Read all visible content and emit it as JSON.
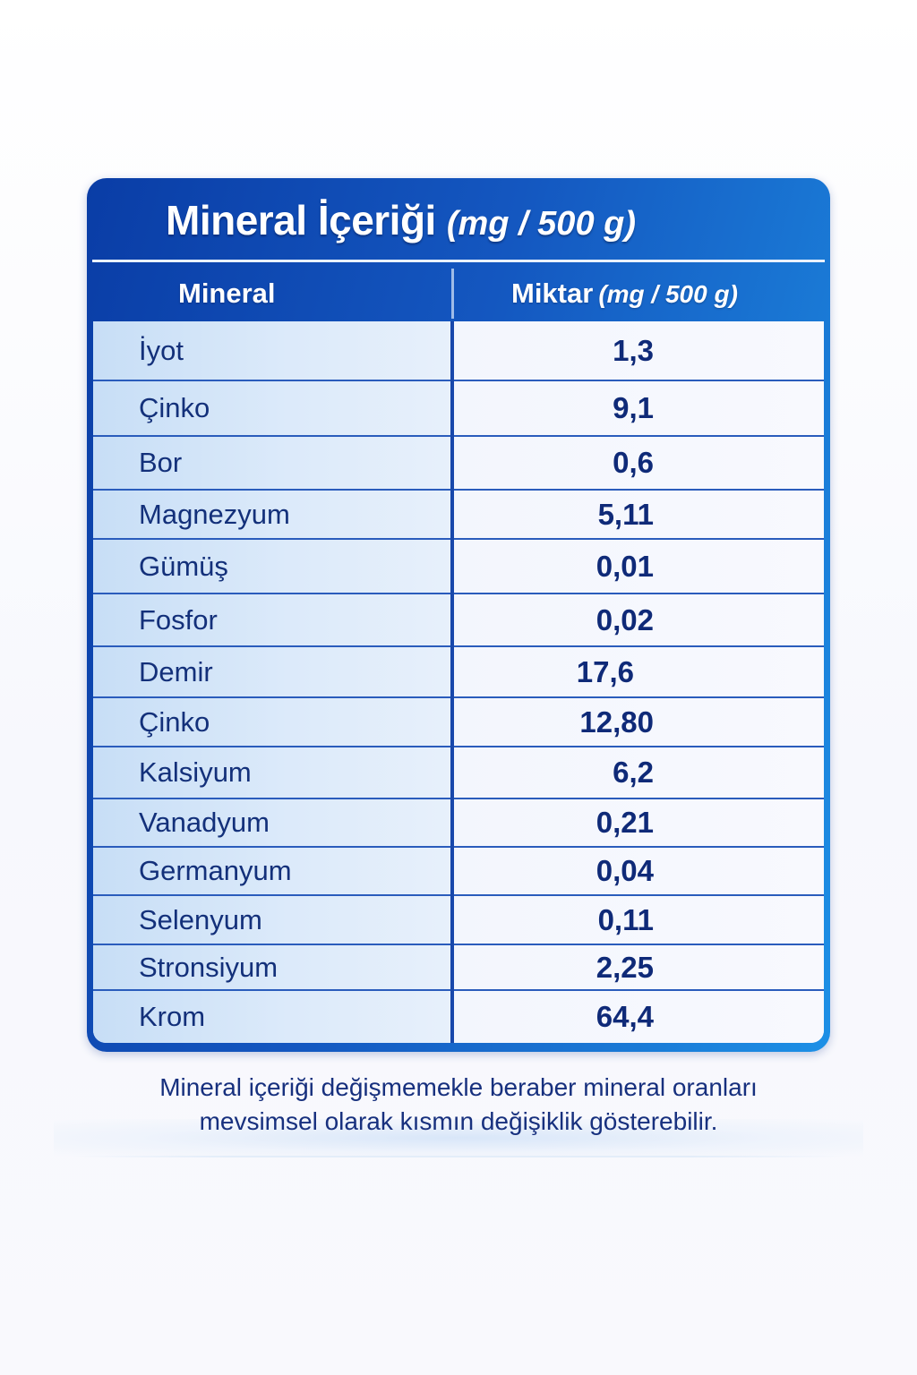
{
  "table": {
    "title": "Mineral İçeriği",
    "title_unit": "(mg / 500 g)",
    "header_mineral": "Mineral",
    "header_amount": "Miktar",
    "header_amount_unit": "(mg / 500 g)",
    "rows": [
      {
        "name": "İyot",
        "value": "1,3"
      },
      {
        "name": "Çinko",
        "value": "9,1"
      },
      {
        "name": "Bor",
        "value": "0,6"
      },
      {
        "name": "Magnezyum",
        "value": "5,11"
      },
      {
        "name": "Gümüş",
        "value": "0,01"
      },
      {
        "name": "Fosfor",
        "value": "0,02"
      },
      {
        "name": "Demir",
        "value": "17,6"
      },
      {
        "name": "Çinko",
        "value": "12,80"
      },
      {
        "name": "Kalsiyum",
        "value": "6,2"
      },
      {
        "name": "Vanadyum",
        "value": "0,21"
      },
      {
        "name": "Germanyum",
        "value": "0,04"
      },
      {
        "name": "Selenyum",
        "value": "0,11"
      },
      {
        "name": "Stronsiyum",
        "value": "2,25"
      },
      {
        "name": "Krom",
        "value": "64,4"
      }
    ]
  },
  "footnote": {
    "line1": "Mineral içeriği değişmemekle beraber mineral oranları",
    "line2": "mevsimsel olarak kısmın değişiklik gösterebilir."
  },
  "colors": {
    "header_blue": "#1457c0",
    "header_light_blue": "#1d90e6",
    "text_navy": "#13307a",
    "left_column_tint": "#d4e6f8",
    "right_column_tint": "#f6f8fe"
  }
}
